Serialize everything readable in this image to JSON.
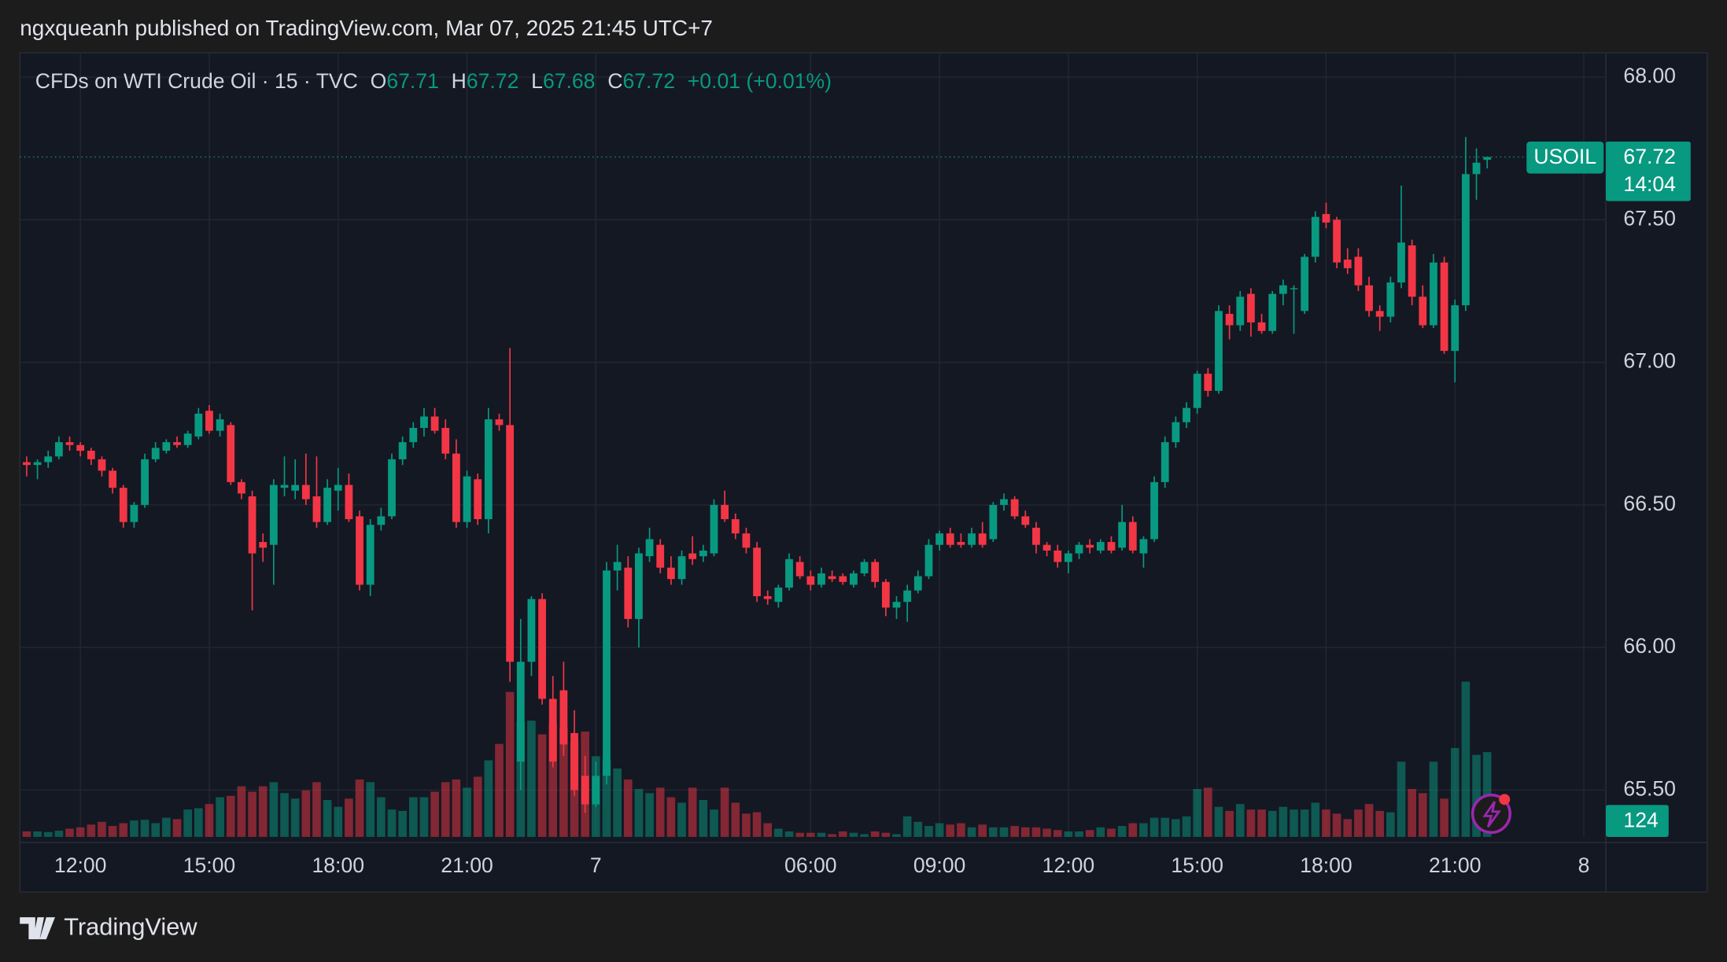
{
  "header": {
    "publisher_line": "ngxqueanh published on TradingView.com, Mar 07, 2025 21:45 UTC+7"
  },
  "chart_data": {
    "type": "candlestick",
    "symbol_line": "CFDs on WTI Crude Oil · 15 · TVC",
    "ohlc_labels": [
      "O",
      "H",
      "L",
      "C"
    ],
    "change_label": "+0.01",
    "change_pct_label": "(+0.01%)",
    "symbol_tag": "USOIL",
    "countdown": "14:04",
    "up_color": "#089981",
    "down_color": "#f23645",
    "grid": true,
    "xlim": [
      -0.64,
      147.05
    ],
    "ylim": [
      65.336,
      68.085
    ],
    "volume_lim": [
      0,
      400
    ],
    "yticks": [
      {
        "value": 65.5,
        "label": "65.50"
      },
      {
        "value": 66,
        "label": "66.00"
      },
      {
        "value": 66.5,
        "label": "66.50"
      },
      {
        "value": 67,
        "label": "67.00"
      },
      {
        "value": 67.5,
        "label": "67.50"
      },
      {
        "value": 68,
        "label": "68.00"
      }
    ],
    "xticks": [
      {
        "value": 5,
        "label": "12:00"
      },
      {
        "value": 17,
        "label": "15:00"
      },
      {
        "value": 29,
        "label": "18:00"
      },
      {
        "value": 41,
        "label": "21:00"
      },
      {
        "value": 53,
        "label": "7"
      },
      {
        "value": 73,
        "label": "06:00"
      },
      {
        "value": 85,
        "label": "09:00"
      },
      {
        "value": 97,
        "label": "12:00"
      },
      {
        "value": 109,
        "label": "15:00"
      },
      {
        "value": 121,
        "label": "18:00"
      },
      {
        "value": 133,
        "label": "21:00"
      },
      {
        "value": 145,
        "label": "8"
      }
    ],
    "candles": [
      [
        66.65,
        66.67,
        66.6,
        66.64
      ],
      [
        66.64,
        66.66,
        66.59,
        66.65
      ],
      [
        66.65,
        66.69,
        66.63,
        66.67
      ],
      [
        66.67,
        66.74,
        66.66,
        66.72
      ],
      [
        66.72,
        66.74,
        66.69,
        66.71
      ],
      [
        66.71,
        66.72,
        66.67,
        66.69
      ],
      [
        66.69,
        66.7,
        66.64,
        66.66
      ],
      [
        66.66,
        66.67,
        66.6,
        66.62
      ],
      [
        66.62,
        66.63,
        66.54,
        66.56
      ],
      [
        66.56,
        66.57,
        66.42,
        66.44
      ],
      [
        66.44,
        66.51,
        66.42,
        66.5
      ],
      [
        66.5,
        66.68,
        66.49,
        66.66
      ],
      [
        66.66,
        66.72,
        66.65,
        66.7
      ],
      [
        66.69,
        66.73,
        66.68,
        66.72
      ],
      [
        66.72,
        66.74,
        66.7,
        66.71
      ],
      [
        66.71,
        66.76,
        66.7,
        66.75
      ],
      [
        66.74,
        66.84,
        66.73,
        66.82
      ],
      [
        66.83,
        66.85,
        66.75,
        66.76
      ],
      [
        66.76,
        66.82,
        66.74,
        66.8
      ],
      [
        66.78,
        66.79,
        66.57,
        66.58
      ],
      [
        66.58,
        66.59,
        66.52,
        66.54
      ],
      [
        66.53,
        66.55,
        66.13,
        66.33
      ],
      [
        66.37,
        66.4,
        66.3,
        66.35
      ],
      [
        66.36,
        66.59,
        66.22,
        66.57
      ],
      [
        66.56,
        66.67,
        66.53,
        66.57
      ],
      [
        66.55,
        66.66,
        66.52,
        66.57
      ],
      [
        66.57,
        66.68,
        66.5,
        66.52
      ],
      [
        66.53,
        66.67,
        66.42,
        66.44
      ],
      [
        66.44,
        66.59,
        66.43,
        66.56
      ],
      [
        66.55,
        66.63,
        66.48,
        66.57
      ],
      [
        66.57,
        66.61,
        66.44,
        66.45
      ],
      [
        66.46,
        66.48,
        66.2,
        66.22
      ],
      [
        66.22,
        66.45,
        66.18,
        66.43
      ],
      [
        66.43,
        66.49,
        66.41,
        66.46
      ],
      [
        66.46,
        66.68,
        66.45,
        66.66
      ],
      [
        66.66,
        66.74,
        66.64,
        66.72
      ],
      [
        66.72,
        66.79,
        66.7,
        66.77
      ],
      [
        66.77,
        66.84,
        66.74,
        66.81
      ],
      [
        66.81,
        66.84,
        66.75,
        66.76
      ],
      [
        66.77,
        66.8,
        66.66,
        66.68
      ],
      [
        66.68,
        66.73,
        66.42,
        66.44
      ],
      [
        66.44,
        66.62,
        66.42,
        66.6
      ],
      [
        66.59,
        66.61,
        66.43,
        66.45
      ],
      [
        66.45,
        66.84,
        66.4,
        66.8
      ],
      [
        66.8,
        66.82,
        66.76,
        66.78
      ],
      [
        66.78,
        67.05,
        65.88,
        65.95
      ],
      [
        65.6,
        66.1,
        65.5,
        65.95
      ],
      [
        65.95,
        66.18,
        65.9,
        66.17
      ],
      [
        66.17,
        66.19,
        65.8,
        65.82
      ],
      [
        65.82,
        65.9,
        65.58,
        65.6
      ],
      [
        65.85,
        65.95,
        65.62,
        65.66
      ],
      [
        65.7,
        65.78,
        65.48,
        65.5
      ],
      [
        65.55,
        65.62,
        65.42,
        65.45
      ],
      [
        65.45,
        65.6,
        65.44,
        65.55
      ],
      [
        65.55,
        66.3,
        65.52,
        66.27
      ],
      [
        66.27,
        66.36,
        66.2,
        66.3
      ],
      [
        66.28,
        66.32,
        66.07,
        66.1
      ],
      [
        66.1,
        66.35,
        66.0,
        66.33
      ],
      [
        66.32,
        66.42,
        66.3,
        66.38
      ],
      [
        66.36,
        66.38,
        66.26,
        66.28
      ],
      [
        66.28,
        66.32,
        66.22,
        66.24
      ],
      [
        66.24,
        66.34,
        66.22,
        66.32
      ],
      [
        66.33,
        66.39,
        66.29,
        66.31
      ],
      [
        66.32,
        66.36,
        66.3,
        66.34
      ],
      [
        66.33,
        66.52,
        66.32,
        66.5
      ],
      [
        66.5,
        66.55,
        66.44,
        66.45
      ],
      [
        66.45,
        66.47,
        66.38,
        66.4
      ],
      [
        66.4,
        66.42,
        66.33,
        66.35
      ],
      [
        66.35,
        66.37,
        66.16,
        66.18
      ],
      [
        66.18,
        66.2,
        66.15,
        66.17
      ],
      [
        66.16,
        66.22,
        66.14,
        66.21
      ],
      [
        66.21,
        66.33,
        66.2,
        66.31
      ],
      [
        66.3,
        66.32,
        66.24,
        66.25
      ],
      [
        66.25,
        66.27,
        66.2,
        66.22
      ],
      [
        66.22,
        66.28,
        66.21,
        66.26
      ],
      [
        66.25,
        66.27,
        66.23,
        66.24
      ],
      [
        66.25,
        66.26,
        66.22,
        66.23
      ],
      [
        66.22,
        66.27,
        66.21,
        66.26
      ],
      [
        66.26,
        66.31,
        66.25,
        66.3
      ],
      [
        66.3,
        66.31,
        66.21,
        66.23
      ],
      [
        66.23,
        66.24,
        66.11,
        66.14
      ],
      [
        66.14,
        66.18,
        66.1,
        66.16
      ],
      [
        66.16,
        66.22,
        66.09,
        66.2
      ],
      [
        66.2,
        66.27,
        66.19,
        66.25
      ],
      [
        66.25,
        66.38,
        66.24,
        66.36
      ],
      [
        66.36,
        66.41,
        66.34,
        66.4
      ],
      [
        66.4,
        66.42,
        66.35,
        66.36
      ],
      [
        66.37,
        66.4,
        66.35,
        66.36
      ],
      [
        66.36,
        66.42,
        66.35,
        66.4
      ],
      [
        66.4,
        66.44,
        66.35,
        66.36
      ],
      [
        66.38,
        66.51,
        66.37,
        66.5
      ],
      [
        66.5,
        66.54,
        66.48,
        66.52
      ],
      [
        66.52,
        66.53,
        66.45,
        66.46
      ],
      [
        66.46,
        66.48,
        66.42,
        66.43
      ],
      [
        66.42,
        66.44,
        66.33,
        66.36
      ],
      [
        66.36,
        66.37,
        66.32,
        66.34
      ],
      [
        66.34,
        66.36,
        66.28,
        66.3
      ],
      [
        66.3,
        66.34,
        66.26,
        66.33
      ],
      [
        66.33,
        66.37,
        66.31,
        66.36
      ],
      [
        66.36,
        66.38,
        66.33,
        66.35
      ],
      [
        66.34,
        66.38,
        66.33,
        66.37
      ],
      [
        66.37,
        66.39,
        66.33,
        66.34
      ],
      [
        66.35,
        66.5,
        66.34,
        66.44
      ],
      [
        66.44,
        66.46,
        66.33,
        66.34
      ],
      [
        66.33,
        66.39,
        66.28,
        66.38
      ],
      [
        66.38,
        66.6,
        66.37,
        66.58
      ],
      [
        66.58,
        66.74,
        66.56,
        66.72
      ],
      [
        66.72,
        66.81,
        66.7,
        66.79
      ],
      [
        66.79,
        66.86,
        66.77,
        66.84
      ],
      [
        66.84,
        66.97,
        66.82,
        66.96
      ],
      [
        66.96,
        66.98,
        66.88,
        66.9
      ],
      [
        66.9,
        67.2,
        66.89,
        67.18
      ],
      [
        67.17,
        67.2,
        67.08,
        67.13
      ],
      [
        67.13,
        67.25,
        67.11,
        67.23
      ],
      [
        67.24,
        67.26,
        67.09,
        67.14
      ],
      [
        67.14,
        67.17,
        67.1,
        67.11
      ],
      [
        67.11,
        67.25,
        67.1,
        67.24
      ],
      [
        67.24,
        67.29,
        67.2,
        67.27
      ],
      [
        67.26,
        67.27,
        67.1,
        67.26
      ],
      [
        67.18,
        67.38,
        67.17,
        67.37
      ],
      [
        67.37,
        67.53,
        67.35,
        67.51
      ],
      [
        67.52,
        67.56,
        67.47,
        67.49
      ],
      [
        67.5,
        67.51,
        67.33,
        67.35
      ],
      [
        67.36,
        67.4,
        67.31,
        67.33
      ],
      [
        67.37,
        67.4,
        67.25,
        67.27
      ],
      [
        67.27,
        67.3,
        67.16,
        67.18
      ],
      [
        67.18,
        67.2,
        67.11,
        67.16
      ],
      [
        67.16,
        67.3,
        67.14,
        67.28
      ],
      [
        67.28,
        67.62,
        67.26,
        67.42
      ],
      [
        67.41,
        67.43,
        67.2,
        67.23
      ],
      [
        67.23,
        67.27,
        67.12,
        67.13
      ],
      [
        67.13,
        67.38,
        67.12,
        67.35
      ],
      [
        67.35,
        67.37,
        67.03,
        67.04
      ],
      [
        67.04,
        67.22,
        66.93,
        67.2
      ],
      [
        67.2,
        67.79,
        67.18,
        67.66
      ],
      [
        67.66,
        67.75,
        67.57,
        67.7
      ],
      [
        67.71,
        67.72,
        67.68,
        67.72
      ]
    ],
    "volume": [
      8,
      8,
      7,
      9,
      12,
      14,
      18,
      22,
      16,
      20,
      24,
      25,
      20,
      28,
      26,
      40,
      42,
      48,
      58,
      60,
      74,
      66,
      74,
      80,
      64,
      56,
      68,
      80,
      54,
      44,
      56,
      84,
      80,
      58,
      40,
      38,
      58,
      58,
      66,
      80,
      84,
      72,
      88,
      112,
      136,
      212,
      168,
      170,
      150,
      166,
      160,
      138,
      154,
      118,
      112,
      100,
      84,
      70,
      64,
      72,
      58,
      50,
      72,
      54,
      40,
      72,
      50,
      34,
      36,
      20,
      12,
      8,
      6,
      6,
      6,
      4,
      8,
      6,
      4,
      8,
      6,
      4,
      30,
      22,
      16,
      20,
      18,
      20,
      14,
      18,
      14,
      14,
      16,
      14,
      14,
      12,
      10,
      8,
      8,
      10,
      14,
      12,
      16,
      20,
      20,
      28,
      28,
      26,
      30,
      70,
      72,
      44,
      38,
      48,
      40,
      40,
      38,
      44,
      40,
      40,
      50,
      40,
      34,
      26,
      40,
      48,
      38,
      36,
      110,
      70,
      64,
      110,
      56,
      130,
      227,
      120,
      124
    ]
  },
  "footer": {
    "brand": "TradingView"
  }
}
